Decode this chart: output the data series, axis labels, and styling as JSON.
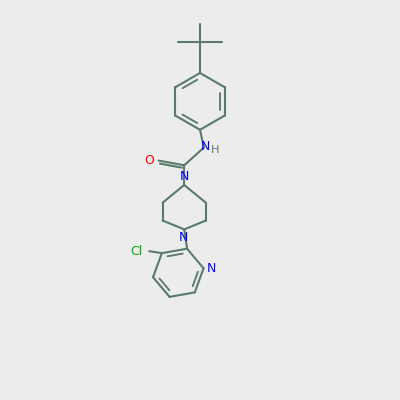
{
  "bg_color": "#ececec",
  "bond_color": "#5a7a6a",
  "N_color": "#0000ff",
  "O_color": "#ff0000",
  "Cl_color": "#00aa00",
  "line_width": 1.5,
  "font_size": 9,
  "xlim": [
    0,
    10
  ],
  "ylim": [
    0,
    10
  ]
}
